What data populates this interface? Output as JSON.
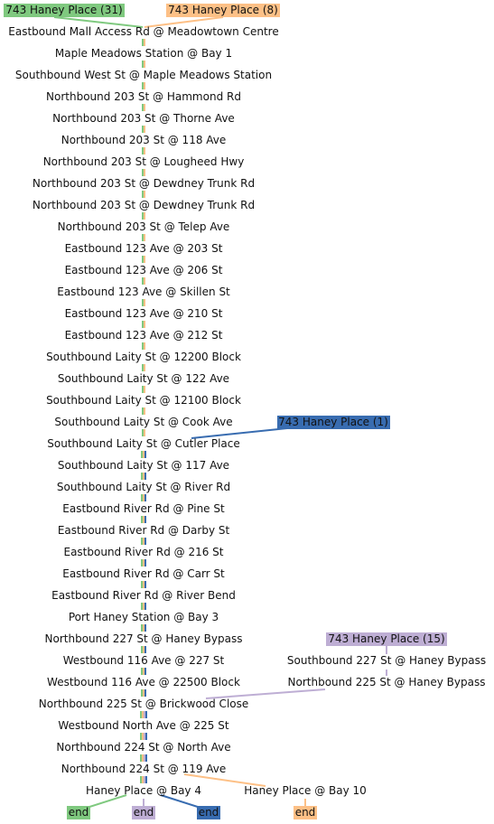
{
  "routes": [
    {
      "id": "r31",
      "label": "743 Haney Place (31)",
      "color": "#7fc97f",
      "end_label": "end"
    },
    {
      "id": "r8",
      "label": "743 Haney Place (8)",
      "color": "#fdc086",
      "end_label": "end"
    },
    {
      "id": "r1",
      "label": "743 Haney Place (1)",
      "color": "#386cb0",
      "end_label": "end"
    },
    {
      "id": "r15",
      "label": "743 Haney Place (15)",
      "color": "#beaed4",
      "end_label": "end"
    }
  ],
  "stops": [
    "Eastbound Mall Access Rd @ Meadowtown Centre",
    "Maple Meadows Station @ Bay 1",
    "Southbound West St @ Maple Meadows Station",
    "Northbound 203 St @ Hammond Rd",
    "Northbound 203 St @ Thorne Ave",
    "Northbound 203 St @ 118 Ave",
    "Northbound 203 St @ Lougheed Hwy",
    "Northbound 203 St @ Dewdney Trunk Rd",
    "Northbound 203 St @ Dewdney Trunk Rd",
    "Northbound 203 St @ Telep Ave",
    "Eastbound 123 Ave @ 203 St",
    "Eastbound 123 Ave @ 206 St",
    "Eastbound 123 Ave @ Skillen St",
    "Eastbound 123 Ave @ 210 St",
    "Eastbound 123 Ave @ 212 St",
    "Southbound Laity St @ 12200 Block",
    "Southbound Laity St @ 122 Ave",
    "Southbound Laity St @ 12100 Block",
    "Southbound Laity St @ Cook Ave",
    "Southbound Laity St @ Cutler Place",
    "Southbound Laity St @ 117 Ave",
    "Southbound Laity St @ River Rd",
    "Eastbound River Rd @ Pine St",
    "Eastbound River Rd @ Darby St",
    "Eastbound River Rd @ 216 St",
    "Eastbound River Rd @ Carr St",
    "Eastbound River Rd @ River Bend",
    "Port Haney Station @ Bay 3",
    "Northbound 227 St @ Haney Bypass",
    "Westbound 116 Ave @ 227 St",
    "Westbound 116 Ave @ 22500 Block",
    "Northbound 225 St @ Brickwood Close",
    "Westbound North Ave @ 225 St",
    "Northbound 224 St @ North Ave",
    "Northbound 224 St @ 119 Ave",
    "Haney Place @ Bay 4"
  ],
  "side_stops": [
    "Southbound 227 St @ Haney Bypass",
    "Northbound 225 St @ Haney Bypass",
    "Haney Place @ Bay 10"
  ]
}
